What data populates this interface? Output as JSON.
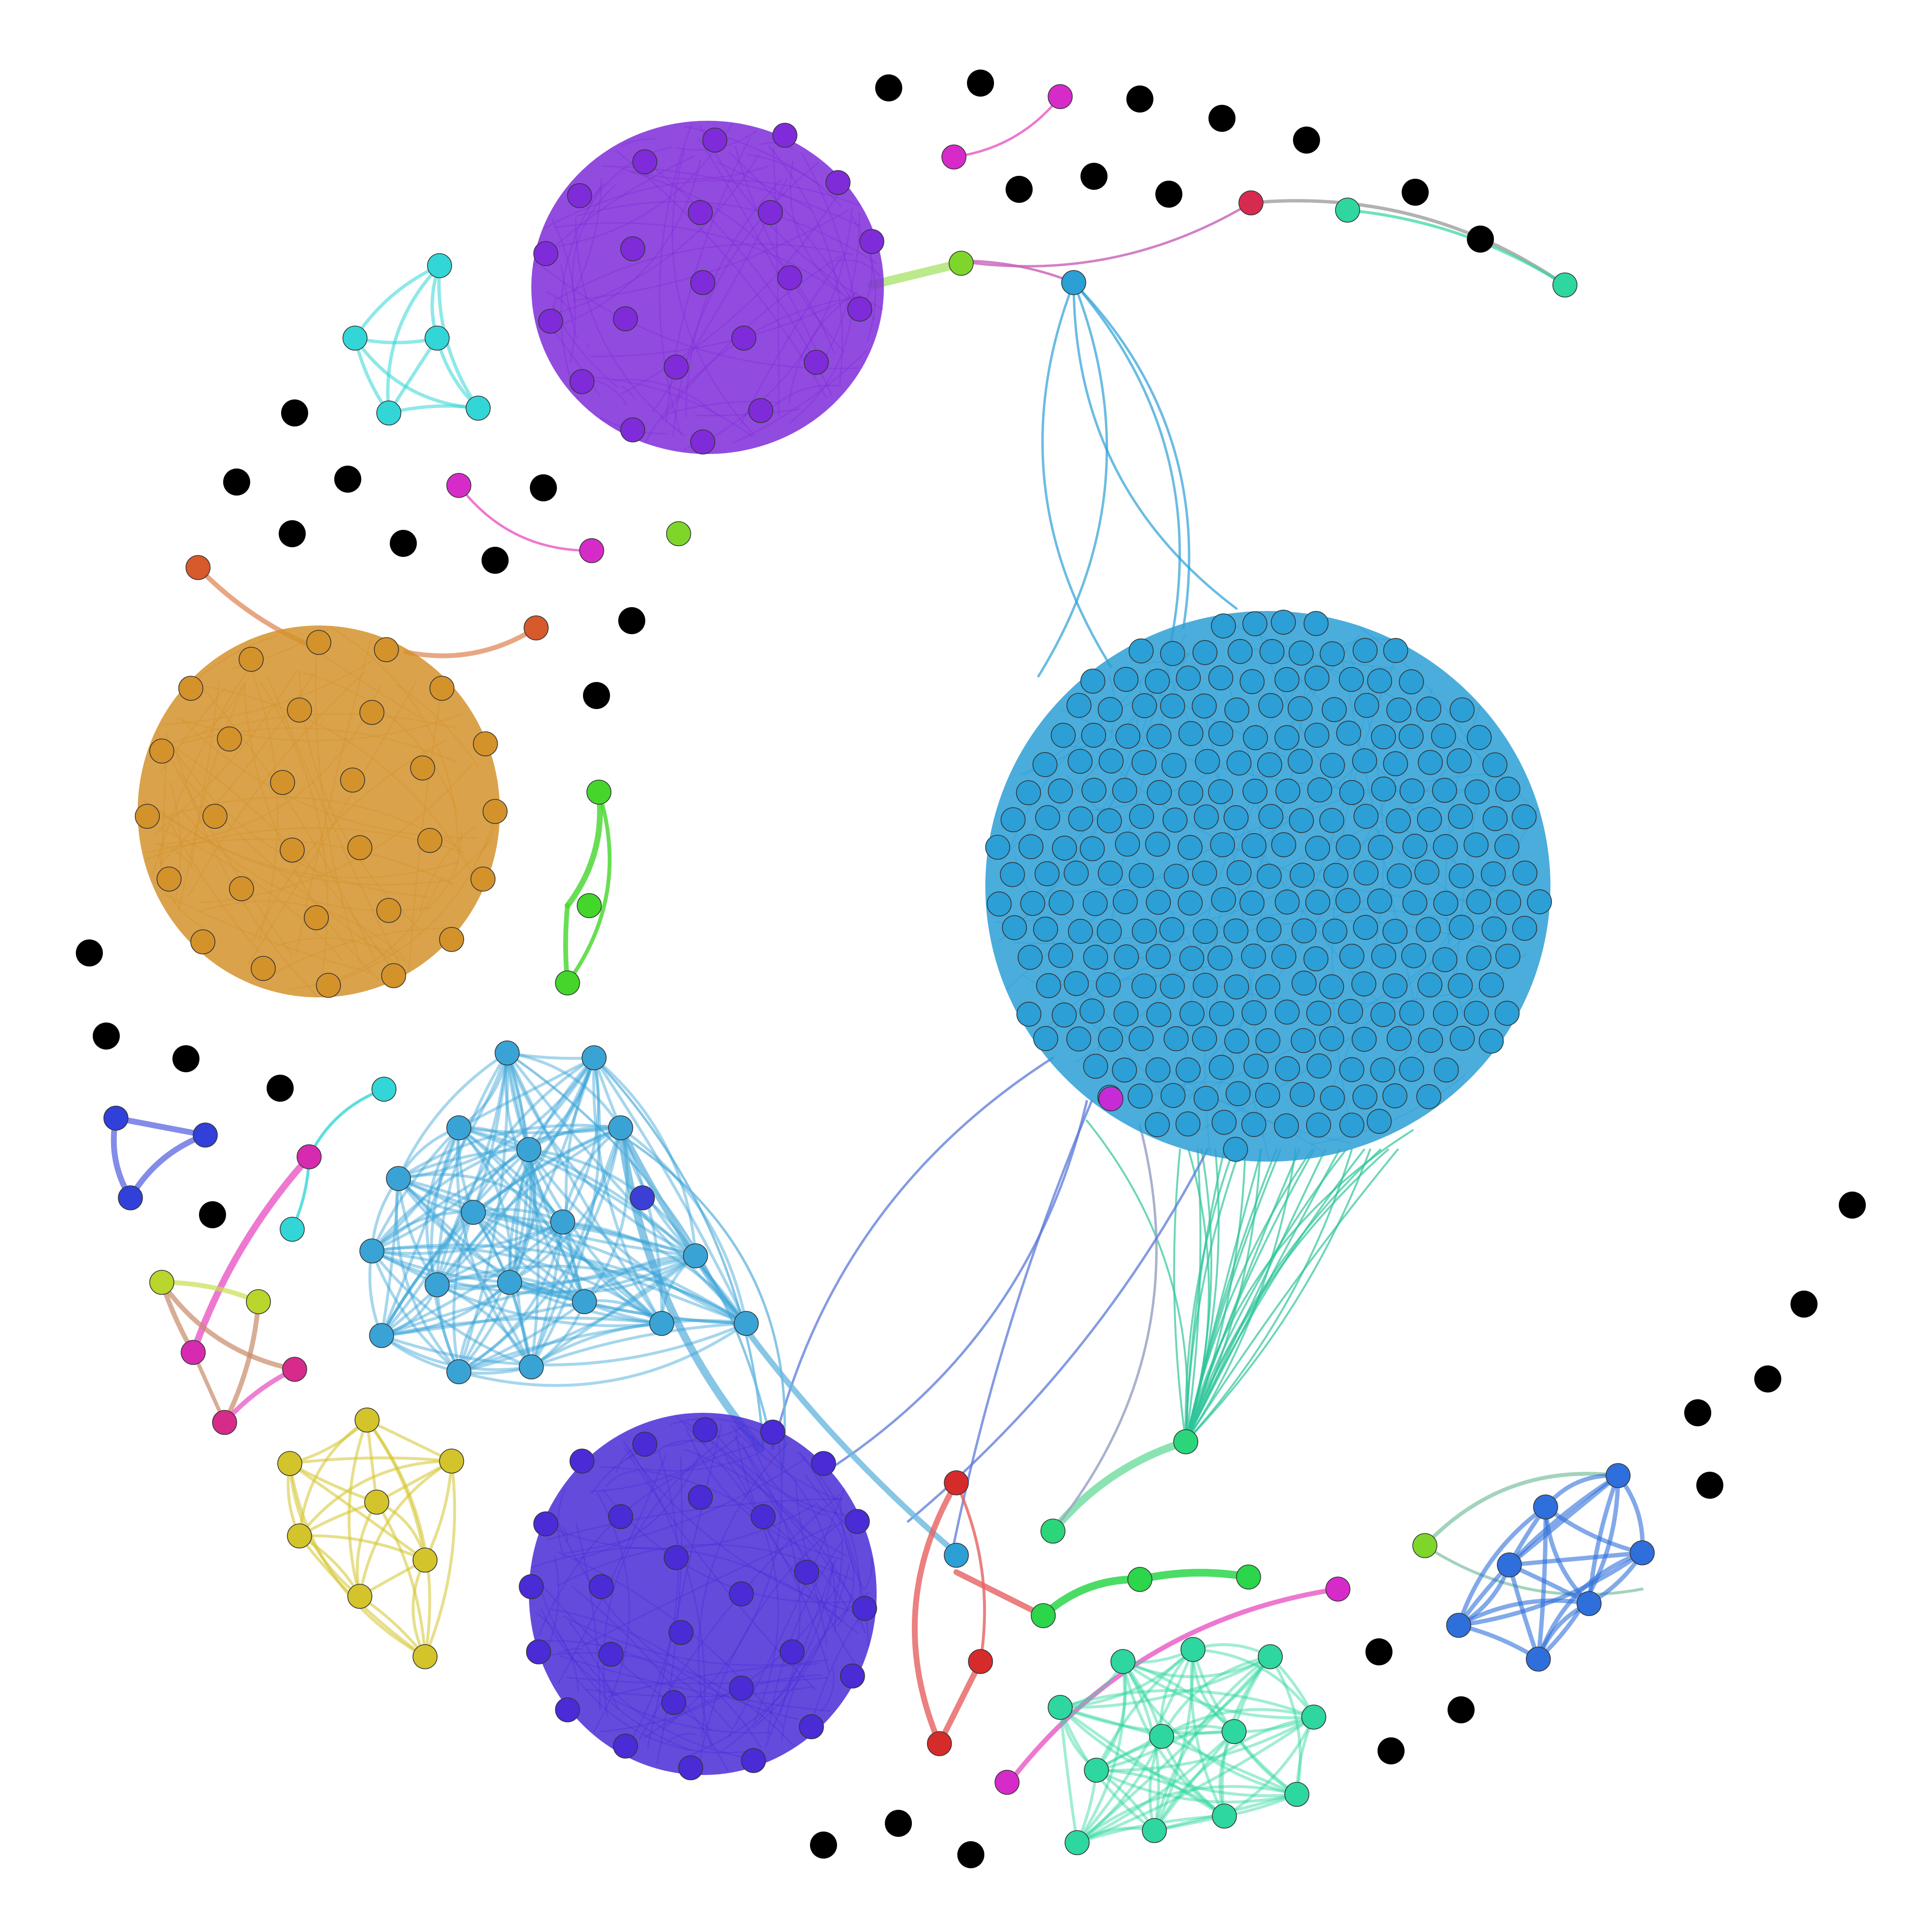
{
  "diagram": {
    "type": "network-graph",
    "background": "#ffffff",
    "node_stroke": "#333333",
    "isolated_node_color": "#000000",
    "clusters": [
      {
        "id": "big-blue",
        "color": "#2b9fd6",
        "nodes": 216,
        "shape": "dense-disc"
      },
      {
        "id": "purple",
        "color": "#7f2bd9",
        "nodes": 33,
        "shape": "dense-disc"
      },
      {
        "id": "orange",
        "color": "#d4922a",
        "nodes": 36,
        "shape": "dense-disc"
      },
      {
        "id": "indigo",
        "color": "#4a2bd6",
        "nodes": 38,
        "shape": "dense-disc"
      },
      {
        "id": "light-blue",
        "color": "#3aa3d6",
        "nodes": 17,
        "shape": "web"
      },
      {
        "id": "teal",
        "color": "#2ed6a0",
        "nodes": 17,
        "shape": "web"
      },
      {
        "id": "royal-blue",
        "color": "#2f6fdb",
        "nodes": 7,
        "shape": "web"
      },
      {
        "id": "yellow",
        "color": "#d4c42b",
        "nodes": 7,
        "shape": "web"
      },
      {
        "id": "cyan",
        "color": "#33d6d6",
        "nodes": 5,
        "shape": "web"
      },
      {
        "id": "small-indigo",
        "color": "#3040d8",
        "nodes": 3,
        "shape": "triangle"
      },
      {
        "id": "magenta-group",
        "color": "#d62bb0",
        "nodes": 4,
        "shape": "web"
      },
      {
        "id": "green-trio",
        "color": "#44d62b",
        "nodes": 3,
        "shape": "chain"
      },
      {
        "id": "green-trio-2",
        "color": "#2bd64a",
        "nodes": 3,
        "shape": "chain"
      },
      {
        "id": "red-trio",
        "color": "#d62b2b",
        "nodes": 3,
        "shape": "triangle"
      }
    ],
    "isolated_nodes": 37
  }
}
